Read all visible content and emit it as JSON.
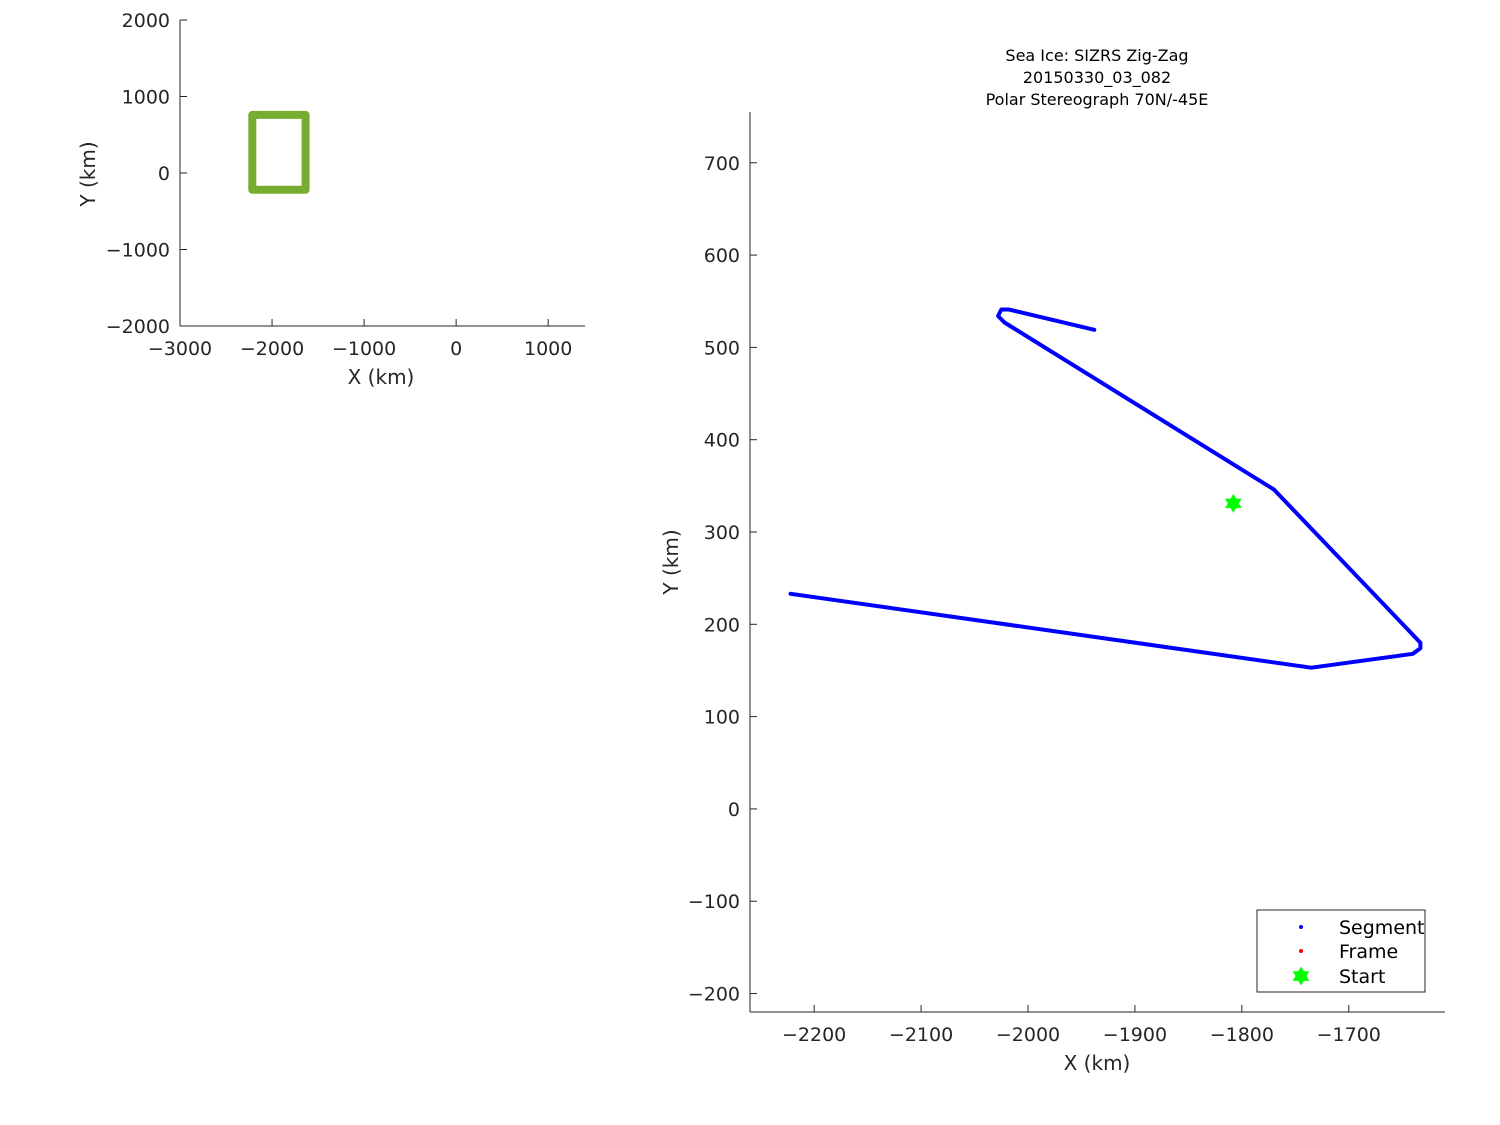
{
  "chart_data": [
    {
      "type": "line",
      "xlabel": "X (km)",
      "ylabel": "Y (km)",
      "xlim": [
        -3000,
        1400
      ],
      "ylim": [
        -2000,
        2000
      ],
      "xticks": [
        "−3000",
        "−2000",
        "−1000",
        "0",
        "1000"
      ],
      "xtick_values": [
        -3000,
        -2000,
        -1000,
        0,
        1000
      ],
      "yticks": [
        "2000",
        "1000",
        "0",
        "−1000",
        "−2000"
      ],
      "ytick_values": [
        2000,
        1000,
        0,
        -1000,
        -2000
      ],
      "series": [
        {
          "color": "#77ac30",
          "x": [
            -2215,
            -1635,
            -1635,
            -2215,
            -2215
          ],
          "y": [
            760,
            760,
            -220,
            -220,
            760
          ]
        }
      ]
    },
    {
      "type": "line",
      "title": [
        "Sea Ice: SIZRS Zig-Zag",
        "20150330_03_082",
        "Polar Stereograph 70N/-45E"
      ],
      "xlabel": "X (km)",
      "ylabel": "Y (km)",
      "xlim": [
        -2260,
        -1610
      ],
      "ylim": [
        -220,
        755
      ],
      "xticks": [
        "−2200",
        "−2100",
        "−2000",
        "−1900",
        "−1800",
        "−1700"
      ],
      "xtick_values": [
        -2200,
        -2100,
        -2000,
        -1900,
        -1800,
        -1700
      ],
      "yticks": [
        "700",
        "600",
        "500",
        "400",
        "300",
        "200",
        "100",
        "0",
        "−100",
        "−200"
      ],
      "ytick_values": [
        700,
        600,
        500,
        400,
        300,
        200,
        100,
        0,
        -100,
        -200
      ],
      "series": [
        {
          "name": "Segment",
          "color": "#0000ff",
          "x": [
            -1938,
            -2018,
            -2025,
            -2028,
            -2022,
            -1770,
            -1637,
            -1633,
            -1633,
            -1640,
            -1735,
            -2222
          ],
          "y": [
            519,
            541,
            541,
            534,
            527,
            346,
            185,
            180,
            174,
            168,
            153,
            233
          ]
        }
      ],
      "start_marker": {
        "name": "Start",
        "color": "#00ff00",
        "x": -1808,
        "y": 331
      },
      "legend": {
        "placement": "bottom-right",
        "entries": [
          {
            "label": "Segment",
            "color": "#0000ff",
            "marker": "dot"
          },
          {
            "label": "Frame",
            "color": "#ff0000",
            "marker": "dot"
          },
          {
            "label": "Start",
            "color": "#00ff00",
            "marker": "hexagram"
          }
        ]
      }
    }
  ]
}
